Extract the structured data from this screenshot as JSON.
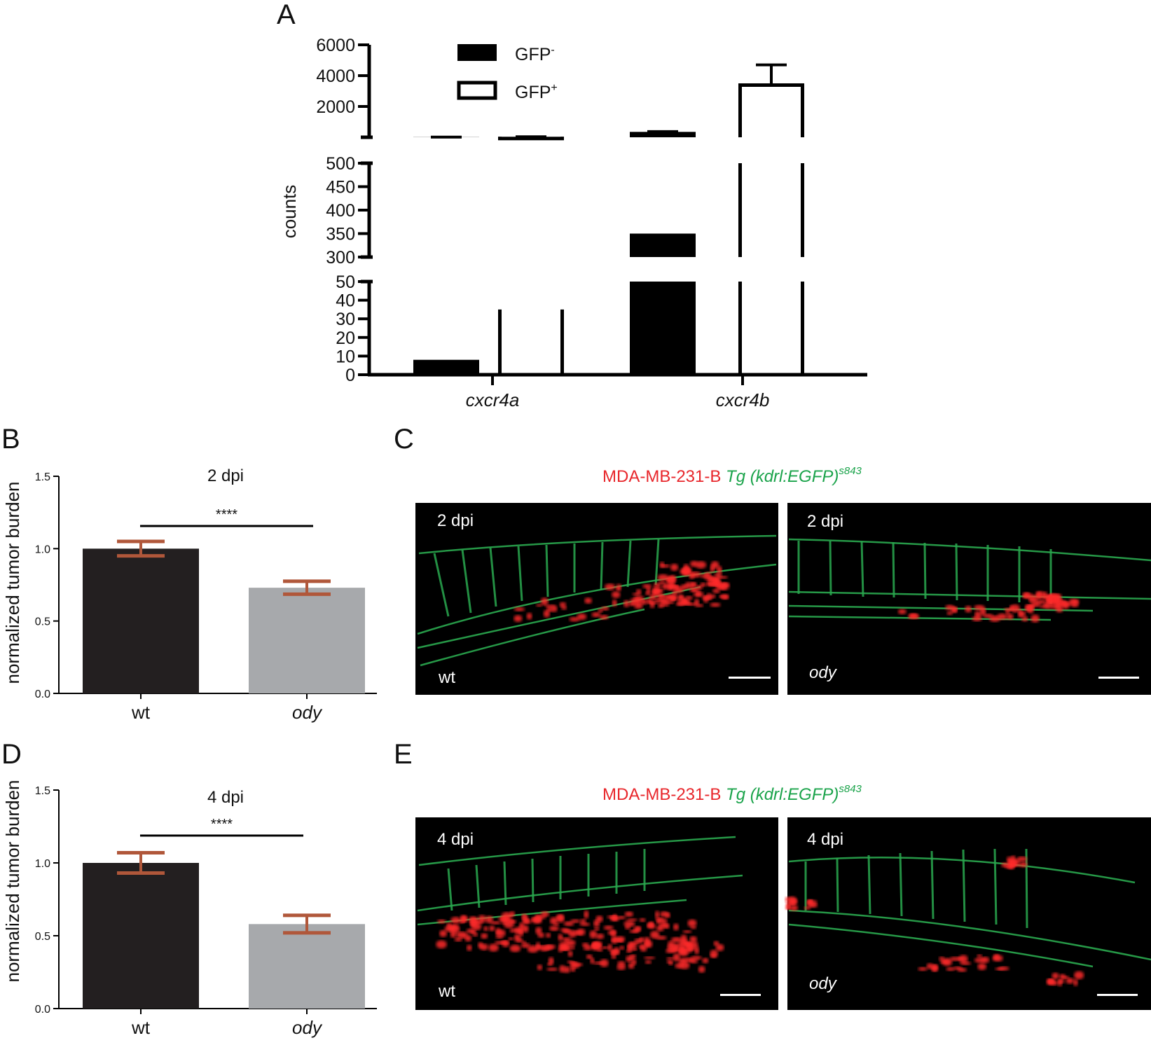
{
  "panels": {
    "A": "A",
    "B": "B",
    "C": "C",
    "D": "D",
    "E": "E"
  },
  "colors": {
    "black_bar": "#000000",
    "dark_bar": "#231f20",
    "grey_bar": "#a7a9ac",
    "error_bar_brown": "#b0573a",
    "red_label": "#e8262b",
    "green_label": "#1aa34a"
  },
  "chart_data": [
    {
      "panel": "A",
      "type": "bar",
      "ylabel": "counts",
      "categories": [
        "cxcr4a",
        "cxcr4b"
      ],
      "y_axis_segments": [
        {
          "range": [
            0,
            50
          ],
          "ticks": [
            "0",
            "10",
            "20",
            "30",
            "40",
            "50"
          ]
        },
        {
          "range": [
            300,
            500
          ],
          "ticks": [
            "300",
            "350",
            "400",
            "450",
            "500"
          ]
        },
        {
          "range": [
            0,
            6000
          ],
          "ticks": [
            "2000",
            "4000",
            "6000"
          ]
        }
      ],
      "series": [
        {
          "name": "GFP",
          "superscript": "-",
          "fill": "black",
          "values": [
            8,
            350
          ],
          "errors": [
            1,
            18
          ]
        },
        {
          "name": "GFP",
          "superscript": "+",
          "fill": "white",
          "values": [
            35,
            3500
          ],
          "errors": [
            1,
            1200
          ]
        }
      ],
      "legend": "top-left"
    },
    {
      "panel": "B",
      "type": "bar",
      "title": "2 dpi",
      "ylabel": "normalized tumor burden",
      "ylim": [
        0,
        1.5
      ],
      "yticks": [
        "0.0",
        "0.5",
        "1.0",
        "1.5"
      ],
      "categories": [
        "wt",
        "ody"
      ],
      "values": [
        1.0,
        0.73
      ],
      "errors": [
        0.05,
        0.045
      ],
      "significance": "****"
    },
    {
      "panel": "D",
      "type": "bar",
      "title": "4 dpi",
      "ylabel": "normalized tumor burden",
      "ylim": [
        0,
        1.5
      ],
      "yticks": [
        "0.0",
        "0.5",
        "1.0",
        "1.5"
      ],
      "categories": [
        "wt",
        "ody"
      ],
      "values": [
        1.0,
        0.58
      ],
      "errors": [
        0.07,
        0.06
      ],
      "significance": "****"
    }
  ],
  "images": {
    "C": {
      "legend_red": "MDA-MB-231-B",
      "legend_green": "Tg (kdrl:EGFP)",
      "legend_sup": "s843",
      "left": {
        "time": "2 dpi",
        "genotype": "wt"
      },
      "right": {
        "time": "2 dpi",
        "genotype": "ody"
      }
    },
    "E": {
      "legend_red": "MDA-MB-231-B",
      "legend_green": "Tg (kdrl:EGFP)",
      "legend_sup": "s843",
      "left": {
        "time": "4 dpi",
        "genotype": "wt"
      },
      "right": {
        "time": "4 dpi",
        "genotype": "ody"
      }
    }
  }
}
